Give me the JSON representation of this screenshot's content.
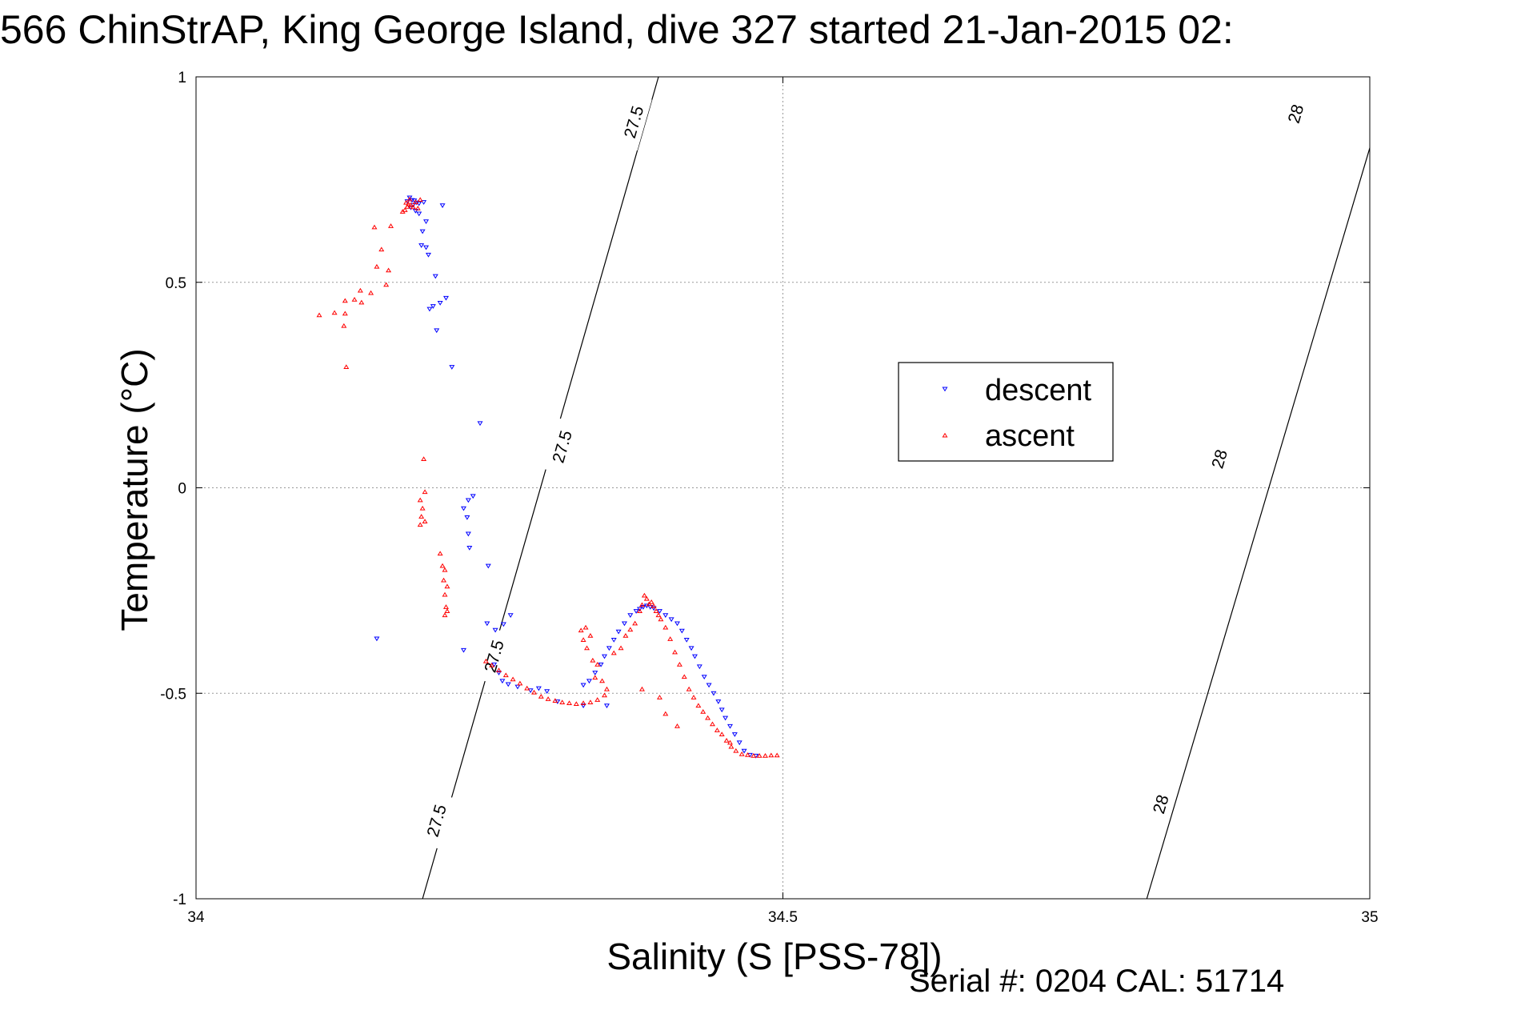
{
  "chart_data": {
    "type": "scatter",
    "title": "566 ChinStrAP, King George Island, dive 327 started 21-Jan-2015 02:",
    "xlabel": "Salinity (S [PSS-78])",
    "ylabel": "Temperature (°C)",
    "footnote": "Serial #: 0204  CAL: 51714",
    "xlim": [
      34,
      35
    ],
    "ylim": [
      -1,
      1
    ],
    "xticks": [
      34,
      34.5,
      35
    ],
    "xtick_labels": [
      "34",
      "34.5",
      "35"
    ],
    "yticks": [
      -1,
      -0.5,
      0,
      0.5,
      1
    ],
    "ytick_labels": [
      "-1",
      "-0.5",
      "0",
      "0.5",
      "1"
    ],
    "grid": true,
    "legend_position": "center-right",
    "contours": [
      {
        "level_label": "27.5",
        "x": [
          34.193,
          34.394
        ],
        "y": [
          -1,
          1
        ],
        "labels": [
          {
            "x": 34.205,
            "y": -0.81
          },
          {
            "x": 34.254,
            "y": -0.41
          },
          {
            "x": 34.312,
            "y": 0.1
          },
          {
            "x": 34.373,
            "y": 0.89
          }
        ]
      },
      {
        "level_label": "28",
        "x": [
          34.81,
          35.018
        ],
        "y": [
          -1,
          1
        ],
        "labels": [
          {
            "x": 34.822,
            "y": -0.77
          },
          {
            "x": 34.872,
            "y": 0.07
          },
          {
            "x": 34.937,
            "y": 0.91
          }
        ]
      }
    ],
    "series": [
      {
        "name": "descent",
        "color": "#0000ff",
        "marker": "triangle-down",
        "points": [
          [
            34.182,
            0.706
          ],
          [
            34.184,
            0.7
          ],
          [
            34.186,
            0.699
          ],
          [
            34.188,
            0.694
          ],
          [
            34.18,
            0.697
          ],
          [
            34.185,
            0.688
          ],
          [
            34.19,
            0.692
          ],
          [
            34.183,
            0.682
          ],
          [
            34.194,
            0.695
          ],
          [
            34.187,
            0.674
          ],
          [
            34.21,
            0.687
          ],
          [
            34.19,
            0.667
          ],
          [
            34.196,
            0.648
          ],
          [
            34.193,
            0.624
          ],
          [
            34.192,
            0.59
          ],
          [
            34.196,
            0.585
          ],
          [
            34.198,
            0.567
          ],
          [
            34.204,
            0.515
          ],
          [
            34.202,
            0.442
          ],
          [
            34.199,
            0.435
          ],
          [
            34.208,
            0.45
          ],
          [
            34.213,
            0.462
          ],
          [
            34.205,
            0.383
          ],
          [
            34.218,
            0.294
          ],
          [
            34.242,
            0.157
          ],
          [
            34.236,
            -0.02
          ],
          [
            34.232,
            -0.03
          ],
          [
            34.228,
            -0.05
          ],
          [
            34.231,
            -0.072
          ],
          [
            34.232,
            -0.112
          ],
          [
            34.233,
            -0.146
          ],
          [
            34.249,
            -0.19
          ],
          [
            34.154,
            -0.367
          ],
          [
            34.228,
            -0.395
          ],
          [
            34.248,
            -0.33
          ],
          [
            34.255,
            -0.346
          ],
          [
            34.262,
            -0.332
          ],
          [
            34.268,
            -0.31
          ],
          [
            34.254,
            -0.43
          ],
          [
            34.258,
            -0.45
          ],
          [
            34.261,
            -0.47
          ],
          [
            34.266,
            -0.478
          ],
          [
            34.274,
            -0.484
          ],
          [
            34.285,
            -0.493
          ],
          [
            34.292,
            -0.488
          ],
          [
            34.299,
            -0.495
          ],
          [
            34.308,
            -0.52
          ],
          [
            34.33,
            -0.53
          ],
          [
            34.35,
            -0.53
          ],
          [
            34.33,
            -0.48
          ],
          [
            34.335,
            -0.47
          ],
          [
            34.34,
            -0.45
          ],
          [
            34.345,
            -0.43
          ],
          [
            34.348,
            -0.41
          ],
          [
            34.352,
            -0.39
          ],
          [
            34.356,
            -0.37
          ],
          [
            34.36,
            -0.35
          ],
          [
            34.365,
            -0.33
          ],
          [
            34.37,
            -0.31
          ],
          [
            34.375,
            -0.3
          ],
          [
            34.378,
            -0.295
          ],
          [
            34.381,
            -0.29
          ],
          [
            34.384,
            -0.287
          ],
          [
            34.387,
            -0.29
          ],
          [
            34.39,
            -0.293
          ],
          [
            34.395,
            -0.3
          ],
          [
            34.4,
            -0.31
          ],
          [
            34.405,
            -0.32
          ],
          [
            34.41,
            -0.33
          ],
          [
            34.414,
            -0.348
          ],
          [
            34.418,
            -0.37
          ],
          [
            34.422,
            -0.39
          ],
          [
            34.425,
            -0.41
          ],
          [
            34.429,
            -0.435
          ],
          [
            34.433,
            -0.46
          ],
          [
            34.437,
            -0.48
          ],
          [
            34.441,
            -0.5
          ],
          [
            34.445,
            -0.52
          ],
          [
            34.448,
            -0.54
          ],
          [
            34.451,
            -0.56
          ],
          [
            34.455,
            -0.58
          ],
          [
            34.459,
            -0.6
          ],
          [
            34.463,
            -0.62
          ],
          [
            34.467,
            -0.64
          ],
          [
            34.472,
            -0.65
          ],
          [
            34.477,
            -0.652
          ]
        ]
      },
      {
        "name": "ascent",
        "color": "#ff0000",
        "marker": "triangle-up",
        "points": [
          [
            34.18,
            0.684
          ],
          [
            34.181,
            0.69
          ],
          [
            34.183,
            0.688
          ],
          [
            34.185,
            0.683
          ],
          [
            34.178,
            0.676
          ],
          [
            34.189,
            0.68
          ],
          [
            34.176,
            0.672
          ],
          [
            34.179,
            0.694
          ],
          [
            34.182,
            0.702
          ],
          [
            34.187,
            0.695
          ],
          [
            34.191,
            0.701
          ],
          [
            34.166,
            0.637
          ],
          [
            34.152,
            0.634
          ],
          [
            34.158,
            0.58
          ],
          [
            34.154,
            0.538
          ],
          [
            34.164,
            0.529
          ],
          [
            34.162,
            0.494
          ],
          [
            34.14,
            0.48
          ],
          [
            34.149,
            0.474
          ],
          [
            34.141,
            0.451
          ],
          [
            34.135,
            0.458
          ],
          [
            34.127,
            0.455
          ],
          [
            34.127,
            0.424
          ],
          [
            34.118,
            0.426
          ],
          [
            34.126,
            0.394
          ],
          [
            34.105,
            0.42
          ],
          [
            34.128,
            0.294
          ],
          [
            34.194,
            0.07
          ],
          [
            34.191,
            -0.03
          ],
          [
            34.195,
            -0.01
          ],
          [
            34.193,
            -0.05
          ],
          [
            34.192,
            -0.07
          ],
          [
            34.195,
            -0.082
          ],
          [
            34.191,
            -0.09
          ],
          [
            34.208,
            -0.16
          ],
          [
            34.21,
            -0.19
          ],
          [
            34.212,
            -0.2
          ],
          [
            34.211,
            -0.225
          ],
          [
            34.214,
            -0.24
          ],
          [
            34.212,
            -0.26
          ],
          [
            34.213,
            -0.29
          ],
          [
            34.214,
            -0.3
          ],
          [
            34.212,
            -0.31
          ],
          [
            34.247,
            -0.422
          ],
          [
            34.252,
            -0.432
          ],
          [
            34.258,
            -0.444
          ],
          [
            34.264,
            -0.456
          ],
          [
            34.27,
            -0.466
          ],
          [
            34.276,
            -0.476
          ],
          [
            34.282,
            -0.488
          ],
          [
            34.288,
            -0.498
          ],
          [
            34.294,
            -0.508
          ],
          [
            34.3,
            -0.514
          ],
          [
            34.306,
            -0.518
          ],
          [
            34.312,
            -0.522
          ],
          [
            34.318,
            -0.524
          ],
          [
            34.324,
            -0.526
          ],
          [
            34.33,
            -0.524
          ],
          [
            34.336,
            -0.522
          ],
          [
            34.342,
            -0.516
          ],
          [
            34.348,
            -0.505
          ],
          [
            34.328,
            -0.347
          ],
          [
            34.332,
            -0.34
          ],
          [
            34.336,
            -0.36
          ],
          [
            34.33,
            -0.37
          ],
          [
            34.333,
            -0.39
          ],
          [
            34.338,
            -0.42
          ],
          [
            34.342,
            -0.43
          ],
          [
            34.34,
            -0.462
          ],
          [
            34.346,
            -0.47
          ],
          [
            34.35,
            -0.49
          ],
          [
            34.356,
            -0.402
          ],
          [
            34.362,
            -0.39
          ],
          [
            34.366,
            -0.36
          ],
          [
            34.37,
            -0.345
          ],
          [
            34.374,
            -0.33
          ],
          [
            34.378,
            -0.3
          ],
          [
            34.38,
            -0.285
          ],
          [
            34.382,
            -0.262
          ],
          [
            34.384,
            -0.27
          ],
          [
            34.386,
            -0.283
          ],
          [
            34.388,
            -0.278
          ],
          [
            34.39,
            -0.288
          ],
          [
            34.392,
            -0.3
          ],
          [
            34.394,
            -0.31
          ],
          [
            34.396,
            -0.32
          ],
          [
            34.4,
            -0.34
          ],
          [
            34.404,
            -0.368
          ],
          [
            34.408,
            -0.4
          ],
          [
            34.412,
            -0.43
          ],
          [
            34.416,
            -0.46
          ],
          [
            34.42,
            -0.49
          ],
          [
            34.424,
            -0.51
          ],
          [
            34.428,
            -0.53
          ],
          [
            34.432,
            -0.545
          ],
          [
            34.436,
            -0.56
          ],
          [
            34.44,
            -0.575
          ],
          [
            34.444,
            -0.59
          ],
          [
            34.448,
            -0.6
          ],
          [
            34.452,
            -0.615
          ],
          [
            34.456,
            -0.63
          ],
          [
            34.46,
            -0.64
          ],
          [
            34.465,
            -0.648
          ],
          [
            34.47,
            -0.65
          ],
          [
            34.475,
            -0.652
          ],
          [
            34.48,
            -0.652
          ],
          [
            34.485,
            -0.652
          ],
          [
            34.49,
            -0.651
          ],
          [
            34.495,
            -0.651
          ],
          [
            34.455,
            -0.62
          ],
          [
            34.41,
            -0.58
          ],
          [
            34.4,
            -0.55
          ],
          [
            34.395,
            -0.51
          ],
          [
            34.38,
            -0.49
          ]
        ]
      }
    ]
  }
}
